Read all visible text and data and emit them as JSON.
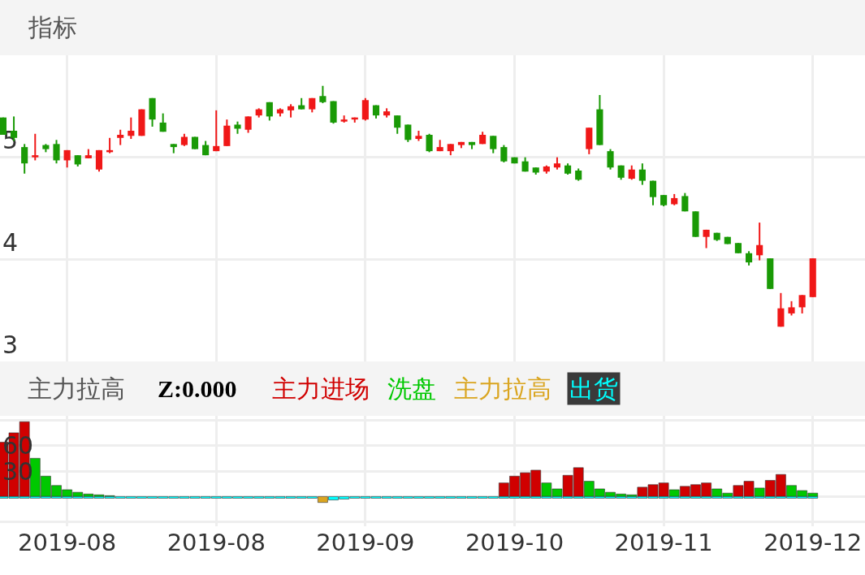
{
  "chart_data": [
    {
      "type": "candlestick",
      "title": "指标",
      "grid": true,
      "tick_labels": "y",
      "ylim": [
        3,
        6
      ],
      "yticks": [
        3,
        4,
        5
      ],
      "categories": [
        null,
        null,
        null,
        null,
        null,
        null,
        "2019-08",
        null,
        null,
        null,
        null,
        null,
        null,
        null,
        null,
        null,
        null,
        null,
        null,
        null,
        "2019-08",
        null,
        null,
        null,
        null,
        null,
        null,
        null,
        null,
        null,
        null,
        null,
        null,
        null,
        "2019-09",
        null,
        null,
        null,
        null,
        null,
        null,
        null,
        null,
        null,
        null,
        null,
        null,
        null,
        "2019-10",
        null,
        null,
        null,
        null,
        null,
        null,
        null,
        null,
        null,
        null,
        null,
        null,
        null,
        "2019-11",
        null,
        null,
        null,
        null,
        null,
        null,
        null,
        null,
        null,
        null,
        null,
        null,
        null,
        "2019-12"
      ],
      "ohlc": [
        [
          5.39,
          5.39,
          5.22,
          5.22
        ],
        [
          5.26,
          5.4,
          5.16,
          5.19
        ],
        [
          5.1,
          5.13,
          4.84,
          4.94
        ],
        [
          5.0,
          5.23,
          4.97,
          5.02
        ],
        [
          5.12,
          5.13,
          5.05,
          5.08
        ],
        [
          5.13,
          5.17,
          4.94,
          4.97
        ],
        [
          4.97,
          5.07,
          4.9,
          5.07
        ],
        [
          5.02,
          5.02,
          4.91,
          4.93
        ],
        [
          4.99,
          5.08,
          4.99,
          5.02
        ],
        [
          4.88,
          5.07,
          4.86,
          5.07
        ],
        [
          5.05,
          5.19,
          5.04,
          5.07
        ],
        [
          5.19,
          5.27,
          5.12,
          5.22
        ],
        [
          5.21,
          5.39,
          5.18,
          5.26
        ],
        [
          5.21,
          5.47,
          5.21,
          5.47
        ],
        [
          5.58,
          5.58,
          5.3,
          5.37
        ],
        [
          5.34,
          5.43,
          5.25,
          5.25
        ],
        [
          5.13,
          5.13,
          5.04,
          5.1
        ],
        [
          5.12,
          5.23,
          5.11,
          5.2
        ],
        [
          5.2,
          5.2,
          5.08,
          5.08
        ],
        [
          5.12,
          5.16,
          5.02,
          5.02
        ],
        [
          5.06,
          5.46,
          5.06,
          5.11
        ],
        [
          5.11,
          5.37,
          5.11,
          5.31
        ],
        [
          5.32,
          5.35,
          5.23,
          5.28
        ],
        [
          5.27,
          5.4,
          5.24,
          5.4
        ],
        [
          5.41,
          5.48,
          5.39,
          5.47
        ],
        [
          5.54,
          5.54,
          5.36,
          5.4
        ],
        [
          5.43,
          5.48,
          5.4,
          5.47
        ],
        [
          5.46,
          5.52,
          5.39,
          5.5
        ],
        [
          5.51,
          5.58,
          5.47,
          5.47
        ],
        [
          5.47,
          5.58,
          5.44,
          5.58
        ],
        [
          5.6,
          5.7,
          5.53,
          5.54
        ],
        [
          5.55,
          5.55,
          5.33,
          5.34
        ],
        [
          5.35,
          5.41,
          5.34,
          5.37
        ],
        [
          5.37,
          5.39,
          5.34,
          5.39
        ],
        [
          5.37,
          5.58,
          5.36,
          5.56
        ],
        [
          5.51,
          5.51,
          5.38,
          5.41
        ],
        [
          5.41,
          5.48,
          5.39,
          5.45
        ],
        [
          5.41,
          5.41,
          5.23,
          5.29
        ],
        [
          5.32,
          5.32,
          5.15,
          5.17
        ],
        [
          5.18,
          5.26,
          5.16,
          5.21
        ],
        [
          5.22,
          5.23,
          5.05,
          5.06
        ],
        [
          5.06,
          5.17,
          5.06,
          5.1
        ],
        [
          5.06,
          5.13,
          5.02,
          5.13
        ],
        [
          5.12,
          5.15,
          5.09,
          5.15
        ],
        [
          5.15,
          5.15,
          5.08,
          5.12
        ],
        [
          5.13,
          5.25,
          5.13,
          5.22
        ],
        [
          5.21,
          5.21,
          5.04,
          5.08
        ],
        [
          5.1,
          5.12,
          4.95,
          4.96
        ],
        [
          5.0,
          5.0,
          4.94,
          4.94
        ],
        [
          4.96,
          5.0,
          4.86,
          4.86
        ],
        [
          4.9,
          4.9,
          4.83,
          4.85
        ],
        [
          4.86,
          4.92,
          4.84,
          4.91
        ],
        [
          4.9,
          5.0,
          4.88,
          4.94
        ],
        [
          4.92,
          4.94,
          4.83,
          4.84
        ],
        [
          4.87,
          4.89,
          4.77,
          4.78
        ],
        [
          5.08,
          5.29,
          5.03,
          5.29
        ],
        [
          5.47,
          5.61,
          5.12,
          5.12
        ],
        [
          5.06,
          5.08,
          4.88,
          4.9
        ],
        [
          4.92,
          4.92,
          4.78,
          4.8
        ],
        [
          4.79,
          4.92,
          4.78,
          4.88
        ],
        [
          4.88,
          4.94,
          4.73,
          4.77
        ],
        [
          4.77,
          4.77,
          4.53,
          4.61
        ],
        [
          4.63,
          4.63,
          4.52,
          4.53
        ],
        [
          4.54,
          4.64,
          4.53,
          4.6
        ],
        [
          4.62,
          4.65,
          4.47,
          4.47
        ],
        [
          4.47,
          4.47,
          4.22,
          4.22
        ],
        [
          4.22,
          4.29,
          4.11,
          4.29
        ],
        [
          4.26,
          4.26,
          4.18,
          4.19
        ],
        [
          4.22,
          4.22,
          4.15,
          4.15
        ],
        [
          4.16,
          4.16,
          4.06,
          4.06
        ],
        [
          4.06,
          4.08,
          3.94,
          3.97
        ],
        [
          4.04,
          4.36,
          3.99,
          4.14
        ],
        [
          4.01,
          4.01,
          3.71,
          3.71
        ],
        [
          3.34,
          3.67,
          3.34,
          3.52
        ],
        [
          3.47,
          3.59,
          3.45,
          3.53
        ],
        [
          3.53,
          3.65,
          3.47,
          3.65
        ],
        [
          3.63,
          4.01,
          3.63,
          4.01
        ]
      ],
      "colors": [
        "#1a9a06",
        "#1a9a06",
        "#1a9a06",
        "#f01818",
        "#1a9a06",
        "#1a9a06",
        "#f01818",
        "#1a9a06",
        "#f01818",
        "#f01818",
        "#f01818",
        "#f01818",
        "#f01818",
        "#f01818",
        "#1a9a06",
        "#1a9a06",
        "#1a9a06",
        "#f01818",
        "#1a9a06",
        "#1a9a06",
        "#f01818",
        "#f01818",
        "#1a9a06",
        "#f01818",
        "#f01818",
        "#1a9a06",
        "#f01818",
        "#f01818",
        "#1a9a06",
        "#f01818",
        "#1a9a06",
        "#1a9a06",
        "#f01818",
        "#f01818",
        "#f01818",
        "#1a9a06",
        "#f01818",
        "#1a9a06",
        "#1a9a06",
        "#f01818",
        "#1a9a06",
        "#f01818",
        "#f01818",
        "#f01818",
        "#1a9a06",
        "#f01818",
        "#1a9a06",
        "#1a9a06",
        "#1a9a06",
        "#1a9a06",
        "#1a9a06",
        "#f01818",
        "#f01818",
        "#1a9a06",
        "#1a9a06",
        "#f01818",
        "#1a9a06",
        "#1a9a06",
        "#1a9a06",
        "#f01818",
        "#1a9a06",
        "#1a9a06",
        "#1a9a06",
        "#f01818",
        "#1a9a06",
        "#1a9a06",
        "#f01818",
        "#1a9a06",
        "#1a9a06",
        "#1a9a06",
        "#1a9a06",
        "#f01818",
        "#1a9a06",
        "#f01818",
        "#f01818",
        "#f01818",
        "#f01818"
      ]
    },
    {
      "type": "bar",
      "title": "主力拉高",
      "annotations": [
        "Z:0.000"
      ],
      "stacked": true,
      "grid": true,
      "legend": "top",
      "ylim": [
        -35,
        95
      ],
      "yticks": [
        {
          "value": 90,
          "label": null
        },
        60,
        30,
        {
          "value": 0,
          "label": null
        },
        {
          "value": -30,
          "label": null
        }
      ],
      "categories": [
        null,
        null,
        null,
        null,
        null,
        null,
        "2019-08",
        null,
        null,
        null,
        null,
        null,
        null,
        null,
        null,
        null,
        null,
        null,
        null,
        null,
        "2019-08",
        null,
        null,
        null,
        null,
        null,
        null,
        null,
        null,
        null,
        null,
        null,
        null,
        null,
        "2019-09",
        null,
        null,
        null,
        null,
        null,
        null,
        null,
        null,
        null,
        null,
        null,
        null,
        null,
        "2019-10",
        null,
        null,
        null,
        null,
        null,
        null,
        null,
        null,
        null,
        null,
        null,
        null,
        null,
        "2019-11",
        null,
        null,
        null,
        null,
        null,
        null,
        null,
        null,
        null,
        null,
        null,
        null,
        null,
        "2019-12"
      ],
      "series": [
        {
          "name": "主力进场",
          "color": "#d00000",
          "values": [
            64,
            75,
            88,
            null,
            null,
            null,
            null,
            null,
            null,
            null,
            null,
            null,
            null,
            null,
            null,
            null,
            null,
            null,
            null,
            null,
            null,
            null,
            null,
            null,
            null,
            null,
            null,
            null,
            null,
            null,
            null,
            null,
            null,
            null,
            null,
            null,
            null,
            null,
            null,
            null,
            null,
            null,
            null,
            null,
            null,
            null,
            null,
            16,
            24,
            28,
            31,
            null,
            null,
            25,
            34,
            null,
            null,
            null,
            null,
            null,
            11,
            14,
            16,
            null,
            12,
            14,
            16,
            null,
            null,
            13,
            18,
            null,
            19,
            26,
            null,
            null,
            null
          ]
        },
        {
          "name": "洗盘",
          "color": "#00c800",
          "values": [
            null,
            null,
            null,
            45,
            24,
            13,
            8,
            5,
            3,
            2,
            1,
            null,
            null,
            null,
            null,
            null,
            null,
            null,
            null,
            null,
            null,
            null,
            null,
            null,
            null,
            null,
            null,
            null,
            null,
            null,
            null,
            null,
            null,
            null,
            null,
            null,
            null,
            null,
            null,
            null,
            null,
            null,
            null,
            null,
            null,
            null,
            null,
            null,
            null,
            null,
            null,
            16,
            9,
            null,
            null,
            18,
            9,
            5,
            3,
            2,
            null,
            null,
            null,
            8,
            null,
            null,
            null,
            9,
            4,
            null,
            null,
            10,
            null,
            null,
            13,
            7,
            4
          ]
        },
        {
          "name": "主力拉高",
          "color": "#daa520",
          "values": [
            null,
            null,
            null,
            null,
            null,
            null,
            null,
            null,
            null,
            null,
            null,
            null,
            null,
            null,
            null,
            null,
            null,
            null,
            null,
            null,
            null,
            null,
            null,
            null,
            null,
            null,
            null,
            null,
            null,
            null,
            -7,
            null,
            null,
            null,
            null,
            null,
            null,
            null,
            null,
            null,
            null,
            null,
            null,
            null,
            null,
            null,
            null,
            null,
            null,
            null,
            null,
            null,
            null,
            null,
            null,
            null,
            null,
            null,
            null,
            null,
            null,
            null,
            null,
            null,
            null,
            null,
            null,
            null,
            null,
            null,
            null,
            null,
            null,
            null,
            null,
            null,
            null
          ]
        },
        {
          "name": "出货",
          "color": "#00ffff",
          "values": [
            -2,
            -2,
            -2,
            -2,
            -2,
            -2,
            -2,
            -2,
            -2,
            -2,
            -2,
            -2,
            -2,
            -2,
            -2,
            -2,
            -2,
            -2,
            -2,
            -2,
            -2,
            -2,
            -2,
            -2,
            -2,
            -2,
            -2,
            -2,
            -2,
            -2,
            null,
            -4,
            -3,
            -2,
            -2,
            -2,
            -2,
            -2,
            -2,
            -2,
            -2,
            -2,
            -2,
            -2,
            -2,
            -2,
            -2,
            -2,
            -2,
            -2,
            -2,
            -2,
            -2,
            -2,
            -2,
            -2,
            -2,
            -2,
            -2,
            -2,
            -2,
            -2,
            -2,
            -2,
            -2,
            -2,
            -2,
            -2,
            -2,
            -2,
            -2,
            -2,
            -2,
            -2,
            -2,
            -2,
            -2
          ]
        }
      ]
    }
  ]
}
